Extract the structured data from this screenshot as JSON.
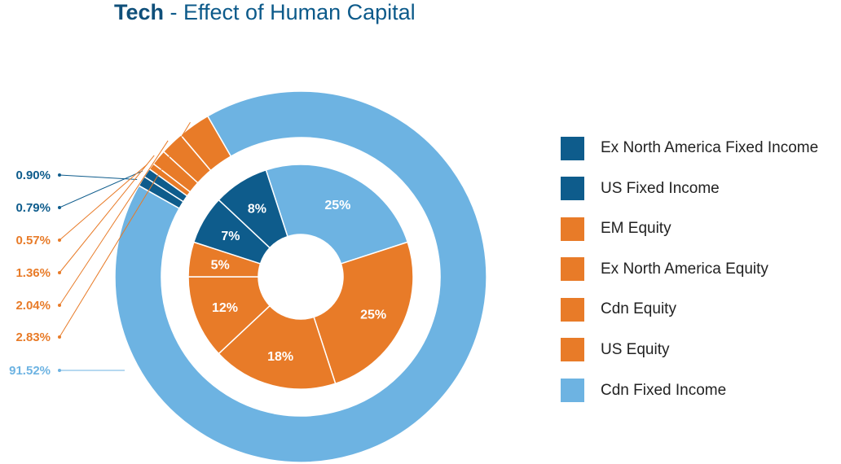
{
  "title": {
    "bold": "Tech",
    "rest": " - Effect of Human Capital"
  },
  "colors": {
    "dark_blue": "#0e5c8c",
    "orange": "#e87b28",
    "light_blue": "#6db3e2"
  },
  "chart_data": {
    "type": "donut",
    "outer_ring": [
      {
        "label": "0.90%",
        "value": 0.9,
        "color": "#0e5c8c"
      },
      {
        "label": "0.79%",
        "value": 0.79,
        "color": "#0e5c8c"
      },
      {
        "label": "0.57%",
        "value": 0.57,
        "color": "#e87b28"
      },
      {
        "label": "1.36%",
        "value": 1.36,
        "color": "#e87b28"
      },
      {
        "label": "2.04%",
        "value": 2.04,
        "color": "#e87b28"
      },
      {
        "label": "2.83%",
        "value": 2.83,
        "color": "#e87b28"
      },
      {
        "label": "91.52%",
        "value": 91.52,
        "color": "#6db3e2"
      }
    ],
    "inner_ring": [
      {
        "label": "25%",
        "value": 25,
        "color": "#6db3e2"
      },
      {
        "label": "25%",
        "value": 25,
        "color": "#e87b28"
      },
      {
        "label": "18%",
        "value": 18,
        "color": "#e87b28"
      },
      {
        "label": "12%",
        "value": 12,
        "color": "#e87b28"
      },
      {
        "label": "5%",
        "value": 5,
        "color": "#e87b28"
      },
      {
        "label": "7%",
        "value": 7,
        "color": "#0e5c8c"
      },
      {
        "label": "8%",
        "value": 8,
        "color": "#0e5c8c"
      }
    ],
    "legend": [
      {
        "label": "Ex North America Fixed Income",
        "color": "#0e5c8c"
      },
      {
        "label": "US Fixed Income",
        "color": "#0e5c8c"
      },
      {
        "label": "EM Equity",
        "color": "#e87b28"
      },
      {
        "label": "Ex North America Equity",
        "color": "#e87b28"
      },
      {
        "label": "Cdn Equity",
        "color": "#e87b28"
      },
      {
        "label": "US Equity",
        "color": "#e87b28"
      },
      {
        "label": "Cdn Fixed Income",
        "color": "#6db3e2"
      }
    ],
    "legend_position": "right"
  }
}
